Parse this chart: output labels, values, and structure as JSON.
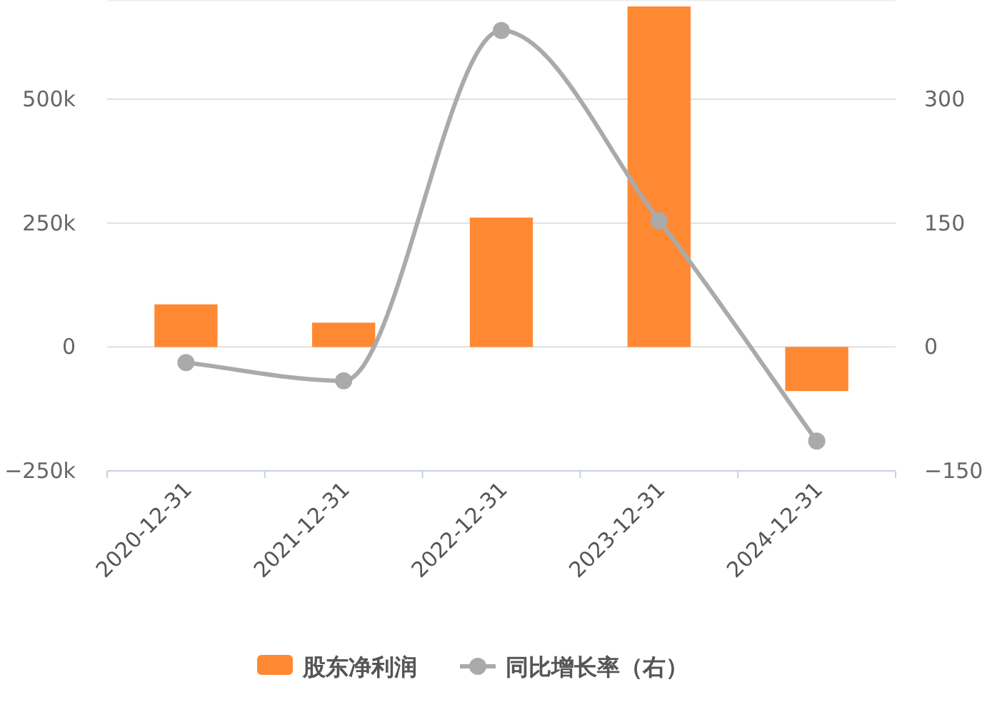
{
  "chart_data": {
    "type": "bar",
    "categories": [
      "2020-12-31",
      "2021-12-31",
      "2022-12-31",
      "2023-12-31",
      "2024-12-31"
    ],
    "series": [
      {
        "name": "股东净利润",
        "color": "#ff8833",
        "values": [
          86000,
          49000,
          261000,
          687000,
          -89000
        ]
      },
      {
        "name": "同比增长率（右）",
        "type": "line",
        "axis": "y2",
        "color": "#aaaaaa",
        "values": [
          -19,
          -41,
          383,
          153,
          -114
        ]
      }
    ],
    "ylim": [
      -250000,
      700000
    ],
    "yticks": [
      {
        "value": -250000,
        "label": "−250k"
      },
      0,
      {
        "value": 250000,
        "label": "250k"
      },
      {
        "value": 500000,
        "label": "500k"
      }
    ],
    "y2lim": [
      -150,
      420
    ],
    "y2ticks": [
      {
        "value": -150,
        "label": "−150"
      },
      0,
      150,
      300
    ],
    "grid": "y",
    "legend": "bottom",
    "marker": "circle",
    "line_style": "solid"
  }
}
